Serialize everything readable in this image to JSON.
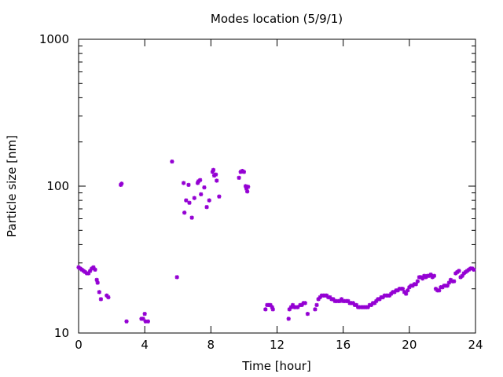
{
  "chart_data": {
    "type": "scatter",
    "title": "Modes location (5/9/1)",
    "xlabel": "Time [hour]",
    "ylabel": "Particle size [nm]",
    "xlim": [
      0,
      24
    ],
    "ylim": [
      10,
      1000
    ],
    "yscale": "log",
    "grid": false,
    "legend": "none",
    "marker_color": "#9400d3",
    "x_ticks": [
      0,
      4,
      8,
      12,
      16,
      20,
      24
    ],
    "x_tick_labels": [
      "0",
      "4",
      "8",
      "12",
      "16",
      "20",
      "24"
    ],
    "y_ticks": [
      10,
      100,
      1000
    ],
    "y_tick_labels": [
      "10",
      "100",
      "1000"
    ],
    "series": [
      {
        "points": [
          [
            0.0,
            28
          ],
          [
            0.1,
            27.5
          ],
          [
            0.2,
            27
          ],
          [
            0.3,
            26.5
          ],
          [
            0.4,
            26
          ],
          [
            0.5,
            25.5
          ],
          [
            0.6,
            25.5
          ],
          [
            0.7,
            26.5
          ],
          [
            0.8,
            27.5
          ],
          [
            0.9,
            28
          ],
          [
            1.0,
            27
          ],
          [
            1.1,
            23
          ],
          [
            1.15,
            22
          ],
          [
            1.25,
            19
          ],
          [
            1.35,
            17
          ],
          [
            1.7,
            18
          ],
          [
            1.8,
            17.5
          ],
          [
            2.55,
            102
          ],
          [
            2.6,
            104
          ],
          [
            2.9,
            12
          ],
          [
            3.8,
            12.5
          ],
          [
            3.9,
            12.5
          ],
          [
            4.0,
            13.5
          ],
          [
            4.05,
            12
          ],
          [
            4.2,
            12
          ],
          [
            5.65,
            147
          ],
          [
            5.95,
            24
          ],
          [
            6.35,
            105
          ],
          [
            6.4,
            66
          ],
          [
            6.5,
            80
          ],
          [
            6.65,
            102
          ],
          [
            6.7,
            77
          ],
          [
            6.85,
            61
          ],
          [
            7.0,
            83
          ],
          [
            7.2,
            105
          ],
          [
            7.25,
            108
          ],
          [
            7.35,
            110
          ],
          [
            7.4,
            88
          ],
          [
            7.6,
            98
          ],
          [
            7.75,
            72
          ],
          [
            7.9,
            80
          ],
          [
            8.1,
            125
          ],
          [
            8.15,
            129
          ],
          [
            8.2,
            118
          ],
          [
            8.3,
            120
          ],
          [
            8.35,
            109
          ],
          [
            8.5,
            85
          ],
          [
            9.7,
            114
          ],
          [
            9.8,
            125
          ],
          [
            9.9,
            127
          ],
          [
            10.0,
            125
          ],
          [
            10.1,
            100
          ],
          [
            10.15,
            96
          ],
          [
            10.2,
            92
          ],
          [
            10.25,
            99
          ],
          [
            11.3,
            14.5
          ],
          [
            11.4,
            15.5
          ],
          [
            11.5,
            15.5
          ],
          [
            11.6,
            15.5
          ],
          [
            11.7,
            15
          ],
          [
            11.75,
            14.5
          ],
          [
            12.7,
            12.5
          ],
          [
            12.75,
            14.5
          ],
          [
            12.85,
            15
          ],
          [
            12.95,
            15.5
          ],
          [
            13.05,
            15
          ],
          [
            13.15,
            15
          ],
          [
            13.25,
            15
          ],
          [
            13.4,
            15.5
          ],
          [
            13.5,
            15.5
          ],
          [
            13.6,
            16
          ],
          [
            13.7,
            16
          ],
          [
            13.85,
            13.5
          ],
          [
            14.3,
            14.5
          ],
          [
            14.4,
            15.5
          ],
          [
            14.5,
            17
          ],
          [
            14.6,
            17.5
          ],
          [
            14.7,
            18
          ],
          [
            14.8,
            18
          ],
          [
            14.9,
            18
          ],
          [
            15.0,
            18
          ],
          [
            15.1,
            17.5
          ],
          [
            15.2,
            17.5
          ],
          [
            15.3,
            17
          ],
          [
            15.4,
            17
          ],
          [
            15.5,
            16.5
          ],
          [
            15.6,
            16.5
          ],
          [
            15.7,
            16.5
          ],
          [
            15.8,
            16.5
          ],
          [
            15.9,
            17
          ],
          [
            16.0,
            16.5
          ],
          [
            16.1,
            16.5
          ],
          [
            16.2,
            16.5
          ],
          [
            16.3,
            16.5
          ],
          [
            16.4,
            16
          ],
          [
            16.5,
            16
          ],
          [
            16.6,
            16
          ],
          [
            16.7,
            15.5
          ],
          [
            16.8,
            15.5
          ],
          [
            16.9,
            15
          ],
          [
            17.0,
            15
          ],
          [
            17.1,
            15
          ],
          [
            17.2,
            15
          ],
          [
            17.3,
            15
          ],
          [
            17.4,
            15
          ],
          [
            17.5,
            15
          ],
          [
            17.6,
            15.5
          ],
          [
            17.7,
            15.5
          ],
          [
            17.8,
            16
          ],
          [
            17.9,
            16
          ],
          [
            18.0,
            16.5
          ],
          [
            18.1,
            17
          ],
          [
            18.2,
            17
          ],
          [
            18.3,
            17.5
          ],
          [
            18.4,
            17.5
          ],
          [
            18.5,
            18
          ],
          [
            18.6,
            18
          ],
          [
            18.7,
            18
          ],
          [
            18.8,
            18
          ],
          [
            18.9,
            18.5
          ],
          [
            19.0,
            19
          ],
          [
            19.1,
            19
          ],
          [
            19.2,
            19.5
          ],
          [
            19.3,
            19.5
          ],
          [
            19.4,
            20
          ],
          [
            19.5,
            20
          ],
          [
            19.6,
            20
          ],
          [
            19.7,
            19
          ],
          [
            19.8,
            18.5
          ],
          [
            19.9,
            19.5
          ],
          [
            20.0,
            20.5
          ],
          [
            20.1,
            21
          ],
          [
            20.2,
            21
          ],
          [
            20.3,
            21.5
          ],
          [
            20.4,
            21.5
          ],
          [
            20.5,
            22.5
          ],
          [
            20.6,
            24
          ],
          [
            20.7,
            24
          ],
          [
            20.8,
            23.5
          ],
          [
            20.9,
            24.5
          ],
          [
            21.0,
            24
          ],
          [
            21.1,
            24.5
          ],
          [
            21.2,
            24.5
          ],
          [
            21.3,
            25
          ],
          [
            21.4,
            24
          ],
          [
            21.5,
            24.5
          ],
          [
            21.6,
            20
          ],
          [
            21.7,
            19.5
          ],
          [
            21.8,
            19.5
          ],
          [
            21.9,
            20.5
          ],
          [
            22.0,
            20.5
          ],
          [
            22.1,
            21
          ],
          [
            22.2,
            21
          ],
          [
            22.3,
            21
          ],
          [
            22.4,
            22
          ],
          [
            22.5,
            23
          ],
          [
            22.6,
            22.5
          ],
          [
            22.7,
            22.5
          ],
          [
            22.8,
            25.5
          ],
          [
            22.9,
            26
          ],
          [
            23.0,
            26.5
          ],
          [
            23.1,
            24
          ],
          [
            23.2,
            24.5
          ],
          [
            23.3,
            25.5
          ],
          [
            23.4,
            26
          ],
          [
            23.5,
            26.5
          ],
          [
            23.6,
            27
          ],
          [
            23.7,
            27.5
          ],
          [
            23.8,
            27.5
          ],
          [
            23.9,
            27
          ]
        ]
      }
    ]
  }
}
